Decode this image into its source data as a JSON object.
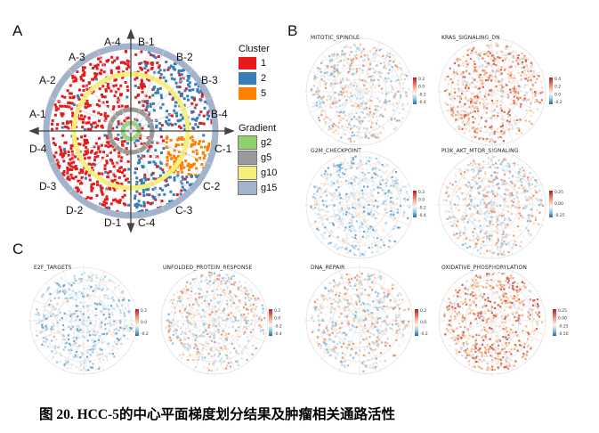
{
  "panel_letters": {
    "a": "A",
    "b": "B",
    "c": "C"
  },
  "panel_a": {
    "sectors": [
      {
        "id": "A-4",
        "label": "A-4"
      },
      {
        "id": "B-1",
        "label": "B-1"
      },
      {
        "id": "A-3",
        "label": "A-3"
      },
      {
        "id": "B-2",
        "label": "B-2"
      },
      {
        "id": "A-2",
        "label": "A-2"
      },
      {
        "id": "B-3",
        "label": "B-3"
      },
      {
        "id": "A-1",
        "label": "A-1"
      },
      {
        "id": "B-4",
        "label": "B-4"
      },
      {
        "id": "D-4",
        "label": "D-4"
      },
      {
        "id": "C-1",
        "label": "C-1"
      },
      {
        "id": "D-3",
        "label": "D-3"
      },
      {
        "id": "C-2",
        "label": "C-2"
      },
      {
        "id": "D-2",
        "label": "D-2"
      },
      {
        "id": "C-3",
        "label": "C-3"
      },
      {
        "id": "D-1",
        "label": "D-1"
      },
      {
        "id": "C-4",
        "label": "C-4"
      }
    ],
    "cluster_legend": {
      "title": "Cluster",
      "items": [
        {
          "label": "1",
          "color": "#e41a1c"
        },
        {
          "label": "2",
          "color": "#377eb8"
        },
        {
          "label": "5",
          "color": "#ff7f00"
        }
      ]
    },
    "gradient_legend": {
      "title": "Gradient",
      "items": [
        {
          "label": "g2",
          "color": "#8fd16b"
        },
        {
          "label": "g5",
          "color": "#9a9a9a"
        },
        {
          "label": "g10",
          "color": "#f6ef7a"
        },
        {
          "label": "g15",
          "color": "#a3b3cc"
        }
      ]
    }
  },
  "panel_b": {
    "maps": [
      {
        "title": "MITOTIC_SPINDLE",
        "ticks": [
          "0.2",
          "0.0",
          "-0.2",
          "-0.4"
        ],
        "style": "mixed"
      },
      {
        "title": "KRAS_SIGNALING_DN",
        "ticks": [
          "0.4",
          "0.2",
          "0.0",
          "-0.2"
        ],
        "style": "warm"
      },
      {
        "title": "G2M_CHECKPOINT",
        "ticks": [
          "0.2",
          "0.0",
          "-0.2",
          "-0.4"
        ],
        "style": "cool"
      },
      {
        "title": "PI3K_AKT_MTOR_SIGNALING",
        "ticks": [
          "0.25",
          "0.00",
          "-0.25"
        ],
        "style": "mixed"
      }
    ]
  },
  "panel_c": {
    "maps": [
      {
        "title": "E2F_TARGETS",
        "ticks": [
          "0.2",
          "0.0",
          "-0.2"
        ],
        "style": "cool"
      },
      {
        "title": "UNFOLDED_PROTEIN_RESPONSE",
        "ticks": [
          "0.2",
          "0.0",
          "-0.2",
          "-0.4"
        ],
        "style": "mixed"
      },
      {
        "title": "DNA_REPAIR",
        "ticks": [
          "0.2",
          "0.0",
          "-0.2"
        ],
        "style": "mixed"
      },
      {
        "title": "OXIDATIVE_PHOSPHORYLATION",
        "ticks": [
          "0.25",
          "0.00",
          "-0.25",
          "-0.50"
        ],
        "style": "warm"
      }
    ]
  },
  "caption": {
    "prefix": "图 20. HCC-5 ",
    "text": "的中心平面梯度划分结果及肿瘤相关通路活性"
  }
}
